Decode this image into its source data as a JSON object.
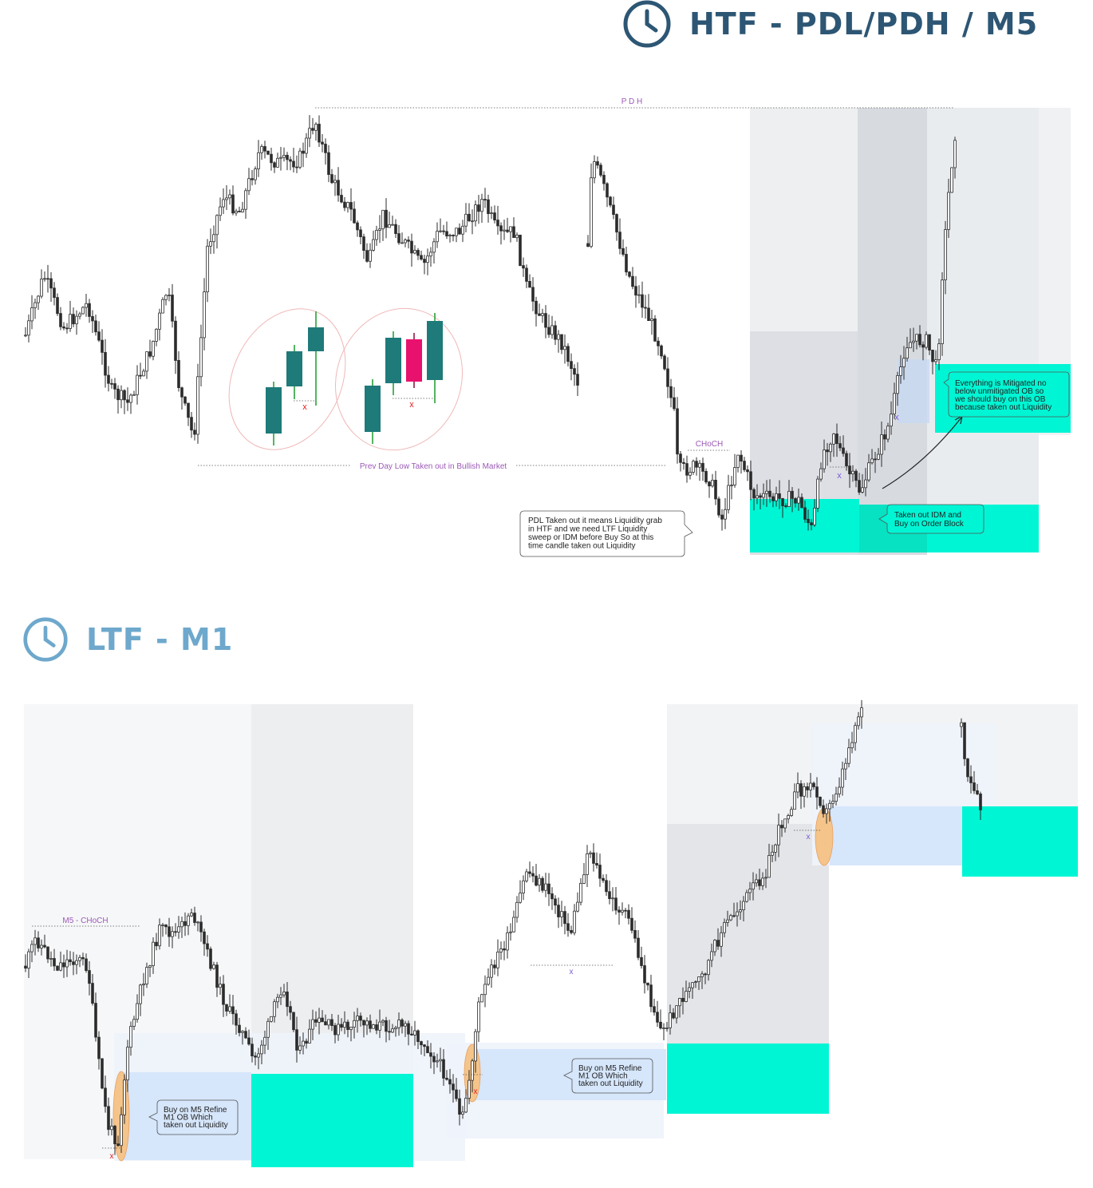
{
  "header_top": {
    "title": "HTF -  PDL/PDH / M5",
    "icon": "clock-icon",
    "color": "#2d5674"
  },
  "header_bottom": {
    "title": "LTF  -  M1",
    "icon": "clock-icon",
    "color": "#6ea8cc"
  },
  "colors": {
    "bull": "#1f7a7a",
    "bear": "#e8126e",
    "zone": "#00f5d4",
    "label": "#9b59b6",
    "candle": "#2b2b2b"
  },
  "chart_data": [
    {
      "type": "candlestick",
      "timeframe": "M5",
      "levels": [
        {
          "name": "PDH",
          "label": "P D H"
        },
        {
          "name": "PDL",
          "label": "Prev Day Low Taken out in Bullish Market"
        }
      ],
      "markers": {
        "choch": "CHoCH",
        "x_marks": [
          "x",
          "x",
          "x",
          "x"
        ]
      },
      "callouts": [
        {
          "text": [
            "PDL Taken out it means Liquidity grab",
            "in HTF and we need LTF Liquidity",
            "sweep or IDM before Buy So at this",
            "time candle taken out Liquidity"
          ]
        },
        {
          "text": [
            "Taken out IDM and",
            "Buy on Order Block"
          ]
        },
        {
          "text": [
            "Everything is Mitigated  no",
            "below unmitigated OB so",
            "we should buy on this OB",
            "because taken out Liquidity"
          ]
        }
      ]
    },
    {
      "type": "candlestick",
      "timeframe": "M1",
      "markers": {
        "choch": "M5 - CHoCH",
        "x_marks": [
          "x",
          "x",
          "x",
          "x"
        ]
      },
      "callouts": [
        {
          "text": [
            "Buy on M5 Refine",
            "M1 OB Which",
            "taken out Liquidity"
          ]
        },
        {
          "text": [
            "Buy on M5 Refine",
            "M1 OB Which",
            "taken out Liquidity"
          ]
        }
      ]
    }
  ]
}
